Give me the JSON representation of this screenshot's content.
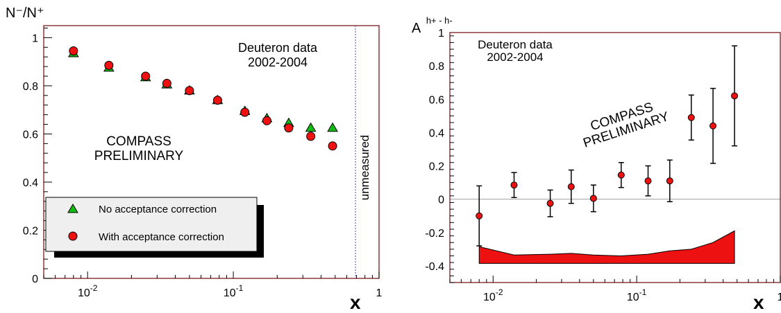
{
  "colors": {
    "frame": "#7a1a1a",
    "marker_red": "#ee1111",
    "marker_green": "#11bb11",
    "legend_bg": "#efefef",
    "zero_line": "#a0a0a0",
    "unmeasured_line": "#4444cc"
  },
  "chart_data": [
    {
      "type": "scatter",
      "ylabel": "N⁻/N⁺",
      "xlabel": "x",
      "xscale": "log",
      "xlim": [
        0.005,
        1
      ],
      "ylim": [
        0,
        1.05
      ],
      "grid": false,
      "x_ticks": [
        {
          "value": 0.01,
          "label_base": "10",
          "label_exp": "-2"
        },
        {
          "value": 0.1,
          "label_base": "10",
          "label_exp": "-1"
        },
        {
          "value": 1,
          "label_base": "1",
          "label_exp": ""
        }
      ],
      "y_ticks": [
        0,
        0.2,
        0.4,
        0.6,
        0.8,
        1
      ],
      "y_tick_labels": [
        "0",
        "0.2",
        "0.4",
        "0.6",
        "0.8",
        "1"
      ],
      "texts": {
        "data_label_line1": "Deuteron data",
        "data_label_line2": "2002-2004",
        "prelim_line1": "COMPASS",
        "prelim_line2": "PRELIMINARY",
        "unmeasured": "unmeasured"
      },
      "unmeasured_x": 0.7,
      "legend_position": "bottom-left",
      "series": [
        {
          "name": "No acceptance correction",
          "marker": "triangle",
          "x": [
            0.008,
            0.014,
            0.025,
            0.035,
            0.05,
            0.078,
            0.12,
            0.17,
            0.24,
            0.34,
            0.48
          ],
          "y": [
            0.935,
            0.875,
            0.835,
            0.805,
            0.78,
            0.74,
            0.695,
            0.665,
            0.645,
            0.625,
            0.625
          ]
        },
        {
          "name": "With acceptance correction",
          "marker": "circle",
          "x": [
            0.008,
            0.014,
            0.025,
            0.035,
            0.05,
            0.078,
            0.12,
            0.17,
            0.24,
            0.34,
            0.48
          ],
          "y": [
            0.945,
            0.885,
            0.84,
            0.81,
            0.78,
            0.74,
            0.69,
            0.655,
            0.625,
            0.59,
            0.55
          ]
        }
      ]
    },
    {
      "type": "scatter",
      "ylabel_base": "A",
      "ylabel_sup": "h+ - h-",
      "xlabel": "x",
      "xscale": "log",
      "xlim": [
        0.005,
        1
      ],
      "ylim": [
        -0.5,
        1
      ],
      "grid": false,
      "x_ticks": [
        {
          "value": 0.01,
          "label_base": "10",
          "label_exp": "-2"
        },
        {
          "value": 0.1,
          "label_base": "10",
          "label_exp": "-1"
        },
        {
          "value": 1,
          "label_base": "1",
          "label_exp": ""
        }
      ],
      "y_ticks": [
        -0.4,
        -0.2,
        0,
        0.2,
        0.4,
        0.6,
        0.8,
        1
      ],
      "y_tick_labels": [
        "-0.4",
        "-0.2",
        "0",
        "0.2",
        "0.4",
        "0.6",
        "0.8",
        "1"
      ],
      "texts": {
        "data_label_line1": "Deuteron data",
        "data_label_line2": "2002-2004",
        "prelim_line1": "COMPASS",
        "prelim_line2": "PRELIMINARY"
      },
      "zero_line": true,
      "series": [
        {
          "marker": "circle",
          "x": [
            0.008,
            0.014,
            0.025,
            0.035,
            0.05,
            0.078,
            0.12,
            0.17,
            0.24,
            0.34,
            0.48
          ],
          "y": [
            -0.1,
            0.085,
            -0.025,
            0.075,
            0.005,
            0.145,
            0.11,
            0.11,
            0.49,
            0.44,
            0.62
          ],
          "err": [
            0.18,
            0.075,
            0.08,
            0.1,
            0.08,
            0.075,
            0.09,
            0.125,
            0.135,
            0.225,
            0.3
          ]
        }
      ],
      "systematic_band": {
        "baseline": -0.385,
        "x": [
          0.008,
          0.014,
          0.025,
          0.035,
          0.05,
          0.078,
          0.12,
          0.17,
          0.24,
          0.34,
          0.48
        ],
        "top": [
          -0.285,
          -0.335,
          -0.33,
          -0.325,
          -0.335,
          -0.34,
          -0.33,
          -0.31,
          -0.3,
          -0.26,
          -0.19
        ]
      }
    }
  ]
}
